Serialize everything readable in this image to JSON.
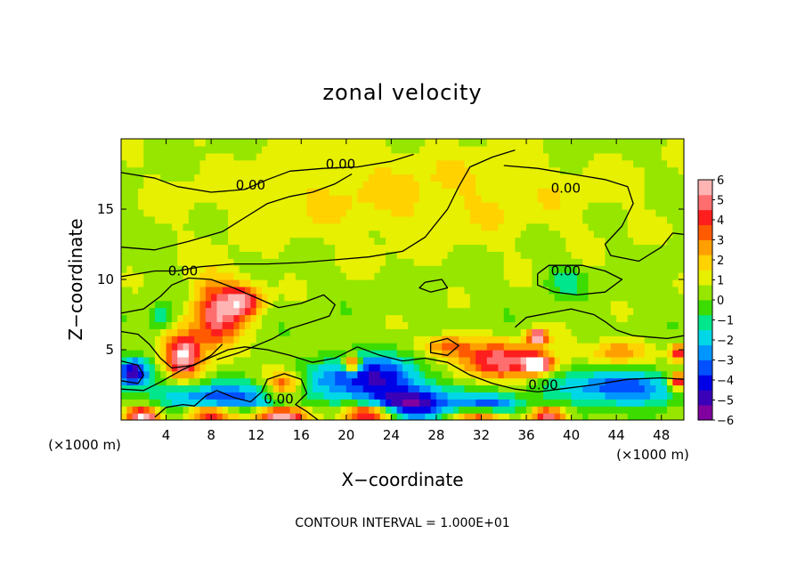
{
  "chart_data": {
    "type": "heatmap",
    "title": "zonal velocity",
    "xlabel": "X−coordinate",
    "ylabel": "Z−coordinate",
    "x_unit": "(×1000 m)",
    "z_unit": "(×1000 m)",
    "xlim": [
      0,
      50
    ],
    "ylim": [
      0,
      20
    ],
    "x_ticks": [
      4,
      8,
      12,
      16,
      20,
      24,
      28,
      32,
      36,
      40,
      44,
      48
    ],
    "y_ticks": [
      5,
      10,
      15
    ],
    "colorbar": {
      "ticks": [
        "6",
        "5",
        "4",
        "3",
        "2",
        "1",
        "0",
        "−1",
        "−2",
        "−3",
        "−4",
        "−5",
        "−6"
      ],
      "range": [
        -6,
        6
      ],
      "colors": [
        "#8000a0",
        "#3a00b8",
        "#0000e6",
        "#0050ff",
        "#0096ff",
        "#00d7e6",
        "#00e68c",
        "#3cdc00",
        "#96e600",
        "#e6f000",
        "#ffd200",
        "#ffa000",
        "#ff5a00",
        "#ff1e1e",
        "#ff6e6e",
        "#ffb4b4"
      ]
    },
    "contour_label": "0.00",
    "contour_interval": "CONTOUR INTERVAL = 1.000E+01",
    "field_blobs": [
      {
        "x": 25,
        "z": 16,
        "rx": 20,
        "rz": 4,
        "v": 1.2
      },
      {
        "x": 8.5,
        "z": 7.5,
        "rx": 2.2,
        "rz": 2.6,
        "v": 4.5
      },
      {
        "x": 5.5,
        "z": 4.5,
        "rx": 1.6,
        "rz": 1.6,
        "v": 5.5
      },
      {
        "x": 11,
        "z": 8.5,
        "rx": 1.6,
        "rz": 1.2,
        "v": 4.0
      },
      {
        "x": 14.5,
        "z": 2.6,
        "rx": 1.6,
        "rz": 0.9,
        "v": 3.5
      },
      {
        "x": 34,
        "z": 4.2,
        "rx": 4,
        "rz": 1.3,
        "v": 4.5
      },
      {
        "x": 37,
        "z": 4.0,
        "rx": 1.2,
        "rz": 0.6,
        "v": 6.0
      },
      {
        "x": 37,
        "z": 6.0,
        "rx": 0.8,
        "rz": 0.5,
        "v": 6.0
      },
      {
        "x": 29,
        "z": 5.3,
        "rx": 2.2,
        "rz": 0.8,
        "v": 3.0
      },
      {
        "x": 44,
        "z": 4.8,
        "rx": 2.5,
        "rz": 0.9,
        "v": 3.0
      },
      {
        "x": 49.5,
        "z": 4.8,
        "rx": 0.8,
        "rz": 0.6,
        "v": 4.0
      },
      {
        "x": 22,
        "z": 3.0,
        "rx": 5,
        "rz": 1.6,
        "v": -4.8
      },
      {
        "x": 26,
        "z": 1.2,
        "rx": 4,
        "rz": 1.1,
        "v": -5.0
      },
      {
        "x": 44,
        "z": 2.4,
        "rx": 6,
        "rz": 1.3,
        "v": -4.0
      },
      {
        "x": 8.5,
        "z": 1.5,
        "rx": 5,
        "rz": 1.3,
        "v": -4.3
      },
      {
        "x": 1,
        "z": 3.4,
        "rx": 1.4,
        "rz": 1.0,
        "v": -5.5
      },
      {
        "x": 33,
        "z": 1.0,
        "rx": 3,
        "rz": 0.9,
        "v": -3.5
      },
      {
        "x": 3.5,
        "z": 7.3,
        "rx": 1.0,
        "rz": 0.9,
        "v": -2.0
      },
      {
        "x": 39.5,
        "z": 10,
        "rx": 1.8,
        "rz": 1.0,
        "v": -1.6
      },
      {
        "x": 8,
        "z": 0.5,
        "rx": 2.5,
        "rz": 0.6,
        "v": 6.0
      },
      {
        "x": 14,
        "z": 0.4,
        "rx": 2.5,
        "rz": 0.5,
        "v": 6.0
      },
      {
        "x": 2,
        "z": 0.4,
        "rx": 1.5,
        "rz": 0.5,
        "v": 6.0
      },
      {
        "x": 22,
        "z": 0.5,
        "rx": 2.2,
        "rz": 0.6,
        "v": 5.5
      },
      {
        "x": 32,
        "z": 0.4,
        "rx": 2.5,
        "rz": 0.5,
        "v": 5.0
      },
      {
        "x": 38,
        "z": 0.4,
        "rx": 1.5,
        "rz": 0.5,
        "v": 5.0
      },
      {
        "x": 20.5,
        "z": 4.0,
        "rx": 0.7,
        "rz": 0.6,
        "v": 6.0
      },
      {
        "x": 49.5,
        "z": 2.8,
        "rx": 0.8,
        "rz": 0.6,
        "v": 6.0
      }
    ],
    "contours": [
      [
        [
          0,
          17.6
        ],
        [
          3,
          17.2
        ],
        [
          5,
          16.6
        ],
        [
          8,
          16.2
        ],
        [
          11,
          16.4
        ],
        [
          13,
          17.1
        ],
        [
          15,
          17.7
        ],
        [
          18,
          17.9
        ],
        [
          21,
          18.0
        ],
        [
          24,
          18.4
        ],
        [
          26,
          18.9
        ]
      ],
      [
        [
          0,
          12.3
        ],
        [
          3,
          12.1
        ],
        [
          6,
          12.7
        ],
        [
          9,
          13.4
        ],
        [
          11,
          14.4
        ],
        [
          13,
          15.4
        ],
        [
          15,
          15.9
        ],
        [
          17,
          16.2
        ],
        [
          19,
          16.8
        ],
        [
          20.5,
          17.5
        ]
      ],
      [
        [
          0,
          10.2
        ],
        [
          3,
          10.6
        ],
        [
          5,
          10.6
        ],
        [
          7,
          10.9
        ],
        [
          10,
          11.1
        ],
        [
          13,
          11.1
        ],
        [
          16,
          11.2
        ],
        [
          19,
          11.4
        ],
        [
          22,
          11.6
        ],
        [
          25,
          12.0
        ],
        [
          27,
          13.0
        ],
        [
          29,
          15.0
        ],
        [
          30,
          16.6
        ],
        [
          31,
          18.0
        ],
        [
          33,
          18.7
        ],
        [
          35,
          19.2
        ]
      ],
      [
        [
          34,
          18.1
        ],
        [
          37,
          17.9
        ],
        [
          40,
          17.5
        ],
        [
          43,
          17.1
        ],
        [
          45,
          16.6
        ],
        [
          45.5,
          15.4
        ],
        [
          44.5,
          13.8
        ],
        [
          43,
          12.5
        ],
        [
          43.5,
          11.7
        ],
        [
          46,
          11.3
        ],
        [
          48,
          12.3
        ],
        [
          49,
          13.3
        ],
        [
          50,
          13.2
        ]
      ],
      [
        [
          0,
          7.6
        ],
        [
          2,
          7.9
        ],
        [
          3.5,
          8.8
        ],
        [
          4.5,
          9.6
        ],
        [
          6,
          10.1
        ],
        [
          8,
          10.0
        ],
        [
          10,
          9.4
        ],
        [
          12,
          8.7
        ],
        [
          14,
          8.0
        ],
        [
          16,
          8.3
        ],
        [
          18,
          8.9
        ],
        [
          19,
          8.2
        ],
        [
          18.5,
          7.4
        ],
        [
          17,
          7.0
        ],
        [
          15,
          6.5
        ],
        [
          13.5,
          5.8
        ],
        [
          12,
          5.3
        ],
        [
          10.5,
          4.8
        ],
        [
          8.5,
          4.3
        ]
      ],
      [
        [
          0,
          6.3
        ],
        [
          1.5,
          6.1
        ],
        [
          2.5,
          5.4
        ],
        [
          3.5,
          4.4
        ],
        [
          4.5,
          3.7
        ],
        [
          6.5,
          3.9
        ],
        [
          8,
          4.6
        ],
        [
          9,
          5.4
        ]
      ],
      [
        [
          0,
          2.2
        ],
        [
          2,
          2.1
        ],
        [
          3.5,
          2.7
        ],
        [
          5.5,
          3.6
        ],
        [
          7.5,
          4.3
        ],
        [
          9.5,
          5.0
        ],
        [
          11,
          5.2
        ],
        [
          13,
          5.0
        ],
        [
          15,
          4.6
        ],
        [
          17,
          4.1
        ],
        [
          19,
          4.4
        ],
        [
          21,
          5.2
        ],
        [
          23,
          4.6
        ],
        [
          25,
          4.2
        ],
        [
          27,
          4.4
        ],
        [
          29,
          4.1
        ],
        [
          31,
          3.2
        ],
        [
          33,
          2.6
        ],
        [
          35,
          2.2
        ],
        [
          37,
          2.0
        ],
        [
          39,
          2.2
        ],
        [
          42,
          2.5
        ],
        [
          45,
          2.9
        ],
        [
          48,
          3.0
        ],
        [
          50,
          2.9
        ]
      ],
      [
        [
          3,
          0.2
        ],
        [
          4,
          0.9
        ],
        [
          5.5,
          1.1
        ],
        [
          6.5,
          1.0
        ],
        [
          7.5,
          1.7
        ],
        [
          8.5,
          2.1
        ],
        [
          10,
          1.6
        ],
        [
          11.5,
          1.3
        ],
        [
          12.5,
          2.0
        ],
        [
          13,
          2.9
        ],
        [
          14.5,
          3.3
        ],
        [
          16,
          2.9
        ],
        [
          16.5,
          1.9
        ],
        [
          15.5,
          1.1
        ],
        [
          16.5,
          0.6
        ],
        [
          17.5,
          0.0
        ]
      ],
      [
        [
          37,
          10.4
        ],
        [
          38,
          11.0
        ],
        [
          41,
          11.0
        ],
        [
          43,
          10.6
        ],
        [
          44.5,
          10.0
        ],
        [
          43,
          9.1
        ],
        [
          40.5,
          8.9
        ],
        [
          38.5,
          9.1
        ],
        [
          37,
          9.6
        ],
        [
          37,
          10.4
        ]
      ],
      [
        [
          35,
          6.6
        ],
        [
          36,
          7.3
        ],
        [
          38,
          7.6
        ],
        [
          40,
          7.9
        ],
        [
          42,
          7.5
        ],
        [
          43,
          7.0
        ],
        [
          44,
          6.4
        ],
        [
          45.5,
          6.0
        ],
        [
          47,
          5.9
        ],
        [
          48.5,
          5.8
        ],
        [
          50,
          6.0
        ]
      ],
      [
        [
          27,
          9.8
        ],
        [
          28.5,
          10.0
        ],
        [
          29,
          9.4
        ],
        [
          27.5,
          9.1
        ],
        [
          26.5,
          9.4
        ],
        [
          27,
          9.8
        ]
      ],
      [
        [
          27.5,
          5.5
        ],
        [
          29,
          5.8
        ],
        [
          30,
          5.3
        ],
        [
          29,
          4.6
        ],
        [
          27.5,
          4.8
        ],
        [
          27.5,
          5.5
        ]
      ],
      [
        [
          0,
          4.2
        ],
        [
          1.5,
          3.9
        ],
        [
          2,
          3.2
        ],
        [
          1.5,
          2.6
        ],
        [
          0,
          2.8
        ]
      ]
    ],
    "contour_label_positions": [
      {
        "x": 19.5,
        "z": 18.2
      },
      {
        "x": 11.5,
        "z": 16.7
      },
      {
        "x": 39.5,
        "z": 16.5
      },
      {
        "x": 5.5,
        "z": 10.6
      },
      {
        "x": 39.5,
        "z": 10.6
      },
      {
        "x": 37.5,
        "z": 2.5
      },
      {
        "x": 14.0,
        "z": 1.5
      }
    ]
  }
}
